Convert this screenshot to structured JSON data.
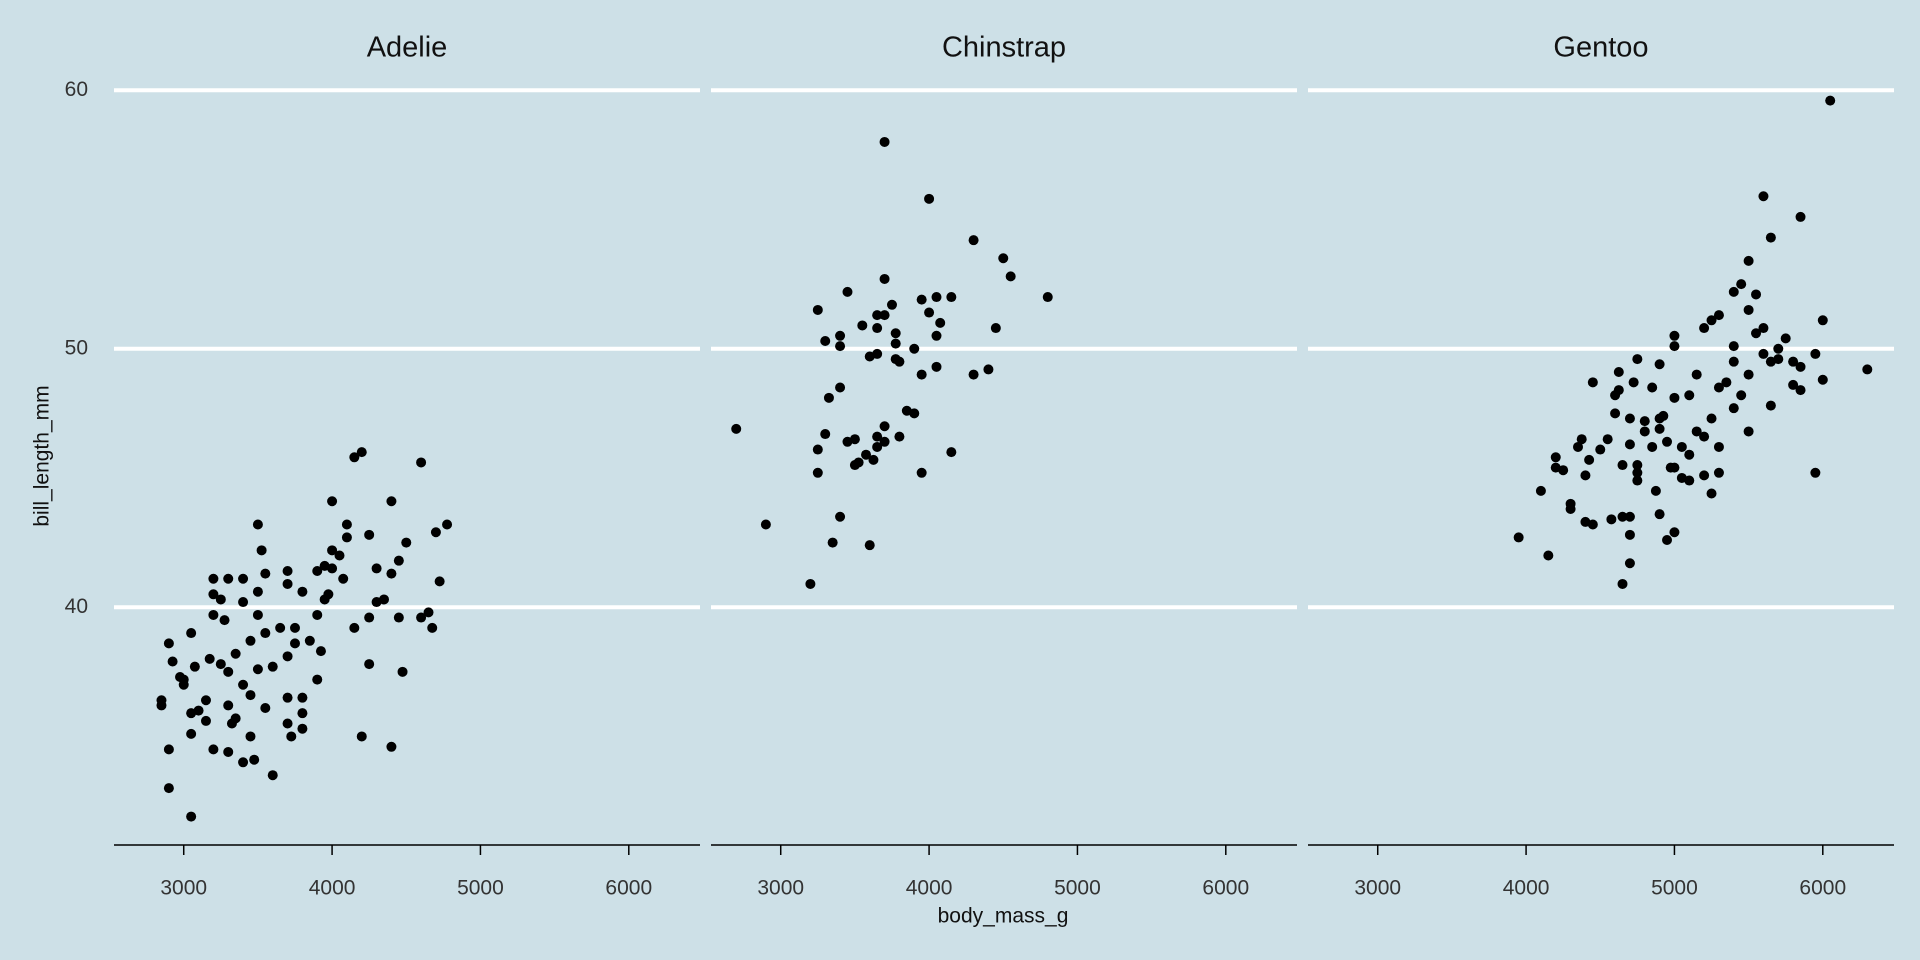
{
  "chart_data": {
    "type": "scatter",
    "x_label": "body_mass_g",
    "y_label": "bill_length_mm",
    "xlim": [
      2530,
      6480
    ],
    "ylim": [
      30.8,
      60.9
    ],
    "xticks": [
      3000,
      4000,
      5000,
      6000
    ],
    "yticks": [
      40,
      50,
      60
    ],
    "grid": true,
    "color": "#000000",
    "facets": [
      {
        "title": "Adelie",
        "x": [
          2850,
          2850,
          2900,
          2900,
          2900,
          2925,
          2975,
          3000,
          3000,
          3050,
          3050,
          3050,
          3075,
          3050,
          3100,
          3150,
          3150,
          3175,
          3200,
          3200,
          3200,
          3200,
          3250,
          3250,
          3275,
          3300,
          3300,
          3300,
          3300,
          3325,
          3350,
          3350,
          3400,
          3400,
          3400,
          3400,
          3450,
          3450,
          3450,
          3475,
          3500,
          3500,
          3500,
          3500,
          3525,
          3550,
          3550,
          3550,
          3600,
          3600,
          3650,
          3700,
          3700,
          3700,
          3700,
          3700,
          3725,
          3750,
          3750,
          3800,
          3800,
          3800,
          3800,
          3850,
          3900,
          3900,
          3900,
          3925,
          3950,
          3950,
          3975,
          4000,
          4000,
          4000,
          4050,
          4075,
          4100,
          4100,
          4150,
          4150,
          4200,
          4200,
          4250,
          4250,
          4250,
          4300,
          4300,
          4350,
          4400,
          4400,
          4400,
          4450,
          4450,
          4475,
          4500,
          4600,
          4600,
          4650,
          4675,
          4700,
          4725,
          4775
        ],
        "y": [
          36.4,
          36.2,
          38.6,
          34.5,
          33.0,
          37.9,
          37.3,
          37.0,
          37.2,
          39.0,
          31.9,
          35.9,
          37.7,
          35.1,
          36.0,
          36.4,
          35.6,
          38.0,
          41.1,
          40.5,
          39.7,
          34.5,
          40.3,
          37.8,
          39.5,
          41.1,
          36.2,
          37.5,
          34.4,
          35.5,
          38.2,
          35.7,
          40.2,
          41.1,
          37.0,
          34.0,
          38.7,
          36.6,
          35.0,
          34.1,
          43.2,
          40.6,
          39.7,
          37.6,
          42.2,
          41.3,
          39.0,
          36.1,
          37.7,
          33.5,
          39.2,
          41.4,
          40.9,
          38.1,
          36.5,
          35.5,
          35.0,
          39.2,
          38.6,
          40.6,
          36.5,
          35.9,
          35.3,
          38.7,
          41.4,
          39.7,
          37.2,
          38.3,
          41.6,
          40.3,
          40.5,
          44.1,
          42.2,
          41.5,
          42.0,
          41.1,
          42.7,
          43.2,
          39.2,
          45.8,
          46.0,
          35.0,
          42.8,
          39.6,
          37.8,
          41.5,
          40.2,
          40.3,
          44.1,
          34.6,
          41.3,
          41.8,
          39.6,
          37.5,
          42.5,
          45.6,
          39.6,
          39.8,
          39.2,
          42.9,
          41.0,
          43.2
        ]
      },
      {
        "title": "Chinstrap",
        "x": [
          2700,
          2900,
          3200,
          3250,
          3250,
          3250,
          3300,
          3300,
          3325,
          3350,
          3400,
          3400,
          3400,
          3400,
          3450,
          3450,
          3500,
          3500,
          3525,
          3550,
          3575,
          3600,
          3600,
          3625,
          3650,
          3650,
          3650,
          3650,
          3650,
          3700,
          3700,
          3700,
          3700,
          3700,
          3750,
          3775,
          3775,
          3775,
          3800,
          3800,
          3850,
          3900,
          3900,
          3950,
          3950,
          3950,
          4000,
          4000,
          4050,
          4050,
          4050,
          4075,
          4150,
          4150,
          4300,
          4300,
          4400,
          4450,
          4500,
          4550,
          4800
        ],
        "y": [
          46.9,
          43.2,
          40.9,
          51.5,
          46.1,
          45.2,
          50.3,
          46.7,
          48.1,
          42.5,
          50.5,
          50.1,
          48.5,
          43.5,
          52.2,
          46.4,
          46.5,
          45.5,
          45.6,
          50.9,
          45.9,
          49.7,
          42.4,
          45.7,
          51.3,
          50.8,
          49.8,
          46.6,
          46.2,
          58.0,
          52.7,
          51.3,
          47.0,
          46.4,
          51.7,
          50.6,
          50.2,
          49.6,
          46.6,
          49.5,
          47.6,
          50.0,
          47.5,
          51.9,
          49.0,
          45.2,
          55.8,
          51.4,
          52.0,
          50.5,
          49.3,
          51.0,
          52.0,
          46.0,
          54.2,
          49.0,
          49.2,
          50.8,
          53.5,
          52.8,
          52.0
        ]
      },
      {
        "title": "Gentoo",
        "x": [
          3950,
          4100,
          4150,
          4200,
          4200,
          4250,
          4300,
          4300,
          4350,
          4375,
          4400,
          4400,
          4425,
          4450,
          4450,
          4500,
          4550,
          4575,
          4600,
          4600,
          4625,
          4625,
          4650,
          4650,
          4650,
          4700,
          4700,
          4700,
          4700,
          4700,
          4725,
          4750,
          4750,
          4750,
          4750,
          4800,
          4800,
          4850,
          4850,
          4875,
          4900,
          4900,
          4900,
          4900,
          4925,
          4950,
          4950,
          4975,
          5000,
          5000,
          5000,
          5000,
          5000,
          5050,
          5050,
          5100,
          5100,
          5100,
          5150,
          5150,
          5200,
          5200,
          5200,
          5250,
          5250,
          5250,
          5300,
          5300,
          5300,
          5300,
          5350,
          5400,
          5400,
          5400,
          5400,
          5450,
          5450,
          5500,
          5500,
          5500,
          5500,
          5550,
          5550,
          5600,
          5600,
          5600,
          5650,
          5650,
          5650,
          5700,
          5700,
          5750,
          5800,
          5800,
          5850,
          5850,
          5850,
          5950,
          5950,
          6000,
          6000,
          6050,
          6300
        ],
        "y": [
          42.7,
          44.5,
          42.0,
          45.8,
          45.4,
          45.3,
          43.8,
          44.0,
          46.2,
          46.5,
          43.3,
          45.1,
          45.7,
          48.7,
          43.2,
          46.1,
          46.5,
          43.4,
          47.5,
          48.2,
          48.4,
          49.1,
          45.5,
          43.5,
          40.9,
          47.3,
          46.3,
          43.5,
          42.8,
          41.7,
          48.7,
          49.6,
          45.5,
          45.2,
          44.9,
          47.2,
          46.8,
          48.5,
          46.2,
          44.5,
          49.4,
          47.3,
          46.9,
          43.6,
          47.4,
          46.4,
          42.6,
          45.4,
          50.5,
          50.1,
          48.1,
          45.4,
          42.9,
          46.2,
          45.0,
          48.2,
          45.9,
          44.9,
          49.0,
          46.8,
          50.8,
          46.6,
          45.1,
          51.1,
          47.3,
          44.4,
          51.3,
          48.5,
          46.2,
          45.2,
          48.7,
          52.2,
          50.1,
          49.5,
          47.7,
          52.5,
          48.2,
          53.4,
          51.5,
          49.0,
          46.8,
          52.1,
          50.6,
          55.9,
          50.8,
          49.8,
          54.3,
          49.5,
          47.8,
          50.0,
          49.6,
          50.4,
          49.5,
          48.6,
          55.1,
          49.3,
          48.4,
          49.8,
          45.2,
          51.1,
          48.8,
          59.6,
          49.2
        ]
      }
    ]
  }
}
